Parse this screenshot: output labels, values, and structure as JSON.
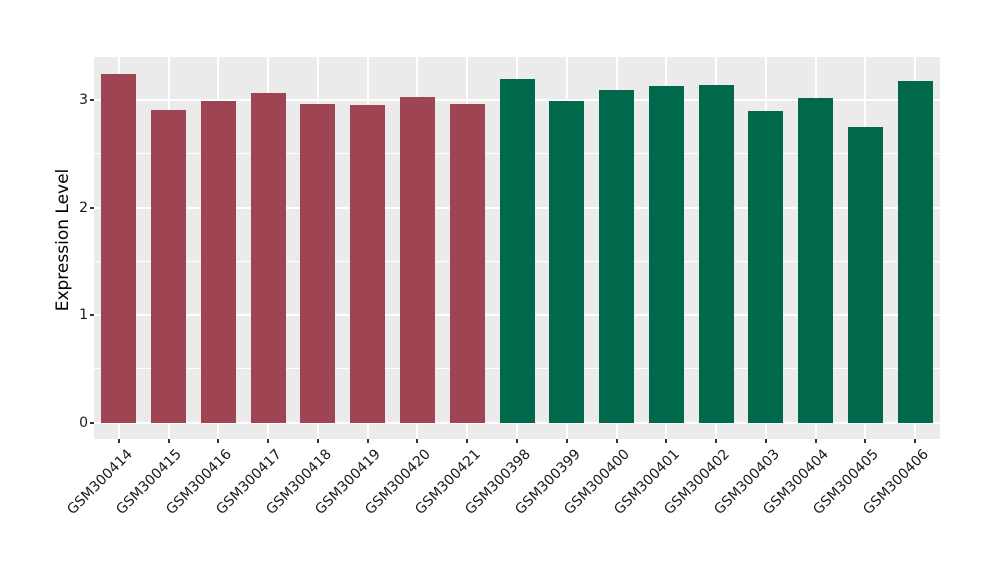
{
  "chart_data": {
    "type": "bar",
    "title": "",
    "xlabel": "",
    "ylabel": "Expression Level",
    "categories": [
      "GSM300414",
      "GSM300415",
      "GSM300416",
      "GSM300417",
      "GSM300418",
      "GSM300419",
      "GSM300420",
      "GSM300421",
      "GSM300398",
      "GSM300399",
      "GSM300400",
      "GSM300401",
      "GSM300402",
      "GSM300403",
      "GSM300404",
      "GSM300405",
      "GSM300406"
    ],
    "values": [
      3.24,
      2.91,
      2.99,
      3.06,
      2.96,
      2.95,
      3.03,
      2.96,
      3.19,
      2.99,
      3.09,
      3.13,
      3.14,
      2.9,
      3.02,
      2.75,
      3.18
    ],
    "bar_colors": [
      "#9E4452",
      "#9E4452",
      "#9E4452",
      "#9E4452",
      "#9E4452",
      "#9E4452",
      "#9E4452",
      "#9E4452",
      "#00694B",
      "#00694B",
      "#00694B",
      "#00694B",
      "#00694B",
      "#00694B",
      "#00694B",
      "#00694B",
      "#00694B"
    ],
    "groups": [
      {
        "name": "maroon-group",
        "color": "#9E4452",
        "categories": [
          "GSM300414",
          "GSM300415",
          "GSM300416",
          "GSM300417",
          "GSM300418",
          "GSM300419",
          "GSM300420",
          "GSM300421"
        ]
      },
      {
        "name": "green-group",
        "color": "#00694B",
        "categories": [
          "GSM300398",
          "GSM300399",
          "GSM300400",
          "GSM300401",
          "GSM300402",
          "GSM300403",
          "GSM300404",
          "GSM300405",
          "GSM300406"
        ]
      }
    ],
    "ylim": [
      0,
      3.41
    ],
    "yticks": [
      0,
      1,
      2,
      3
    ],
    "minor_yticks": [
      0.5,
      1.5,
      2.5
    ],
    "grid": true,
    "legend_position": "none",
    "panel_background": "#EBEBEB",
    "gridline_color": "#FFFFFF",
    "axis_text_color": "#1a1a1a",
    "x_label_rotation_deg": 45
  }
}
